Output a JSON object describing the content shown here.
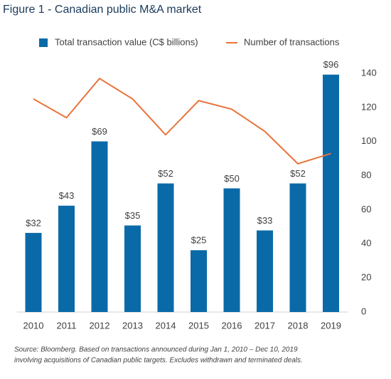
{
  "chart_data": {
    "type": "bar-line",
    "title": "Figure 1 - Canadian public M&A market",
    "categories": [
      "2010",
      "2011",
      "2012",
      "2013",
      "2014",
      "2015",
      "2016",
      "2017",
      "2018",
      "2019"
    ],
    "series": [
      {
        "name": "Total transaction value (C$ billions)",
        "type": "bar",
        "color": "#0a6aa8",
        "values": [
          32,
          43,
          69,
          35,
          52,
          25,
          50,
          33,
          52,
          96
        ],
        "value_labels": [
          "$32",
          "$43",
          "$69",
          "$35",
          "$52",
          "$25",
          "$50",
          "$33",
          "$52",
          "$96"
        ]
      },
      {
        "name": "Number of transactions",
        "type": "line",
        "color": "#e8743b",
        "axis": "y2",
        "values": [
          125,
          114,
          137,
          125,
          104,
          124,
          119,
          106,
          87,
          93
        ]
      }
    ],
    "ylim": [
      0,
      96.5
    ],
    "y2lim": [
      0,
      140
    ],
    "y2ticks": [
      0,
      20,
      40,
      60,
      80,
      100,
      120,
      140
    ],
    "source": [
      "Source: Bloomberg. Based on transactions announced during Jan 1, 2010 – Dec 10, 2019",
      "involving acquisitions of Canadian public targets. Excludes withdrawn and terminated deals."
    ]
  }
}
